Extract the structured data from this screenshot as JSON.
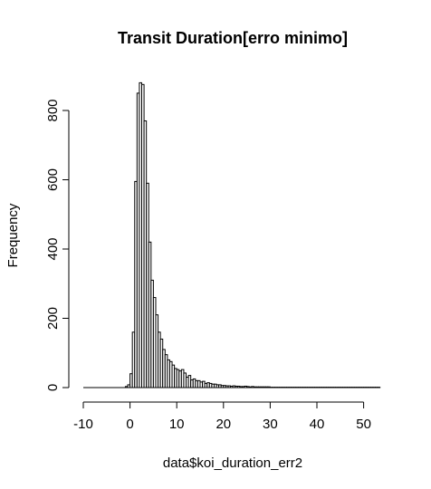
{
  "chart_data": {
    "type": "bar",
    "title": "Transit Duration[erro minimo]",
    "xlabel": "data$koi_duration_err2",
    "ylabel": "Frequency",
    "x_ticks": [
      -10,
      0,
      10,
      20,
      30,
      40,
      50
    ],
    "y_ticks": [
      0,
      200,
      400,
      600,
      800
    ],
    "xlim": [
      -10,
      53.5
    ],
    "ylim": [
      0,
      880
    ],
    "bin_width": 0.5,
    "bin_start": -1.0,
    "values": [
      3,
      8,
      40,
      160,
      595,
      850,
      880,
      875,
      770,
      590,
      420,
      310,
      260,
      210,
      160,
      140,
      110,
      95,
      80,
      75,
      65,
      55,
      52,
      48,
      52,
      42,
      30,
      35,
      22,
      25,
      20,
      20,
      16,
      18,
      12,
      14,
      12,
      10,
      10,
      8,
      8,
      6,
      6,
      5,
      5,
      4,
      5,
      4,
      4,
      3,
      3,
      4,
      3,
      2,
      3,
      2,
      2,
      2,
      2,
      2,
      2,
      2,
      1,
      1,
      1,
      1,
      1,
      1,
      1,
      1,
      1,
      1,
      1,
      1,
      1,
      1,
      1,
      1,
      1,
      1,
      1,
      1,
      1,
      1,
      1,
      1,
      1,
      1,
      1,
      1,
      1,
      1,
      1,
      1,
      1,
      1,
      1,
      1,
      1,
      1,
      1,
      1,
      1,
      1,
      1,
      1,
      1,
      1,
      1
    ]
  }
}
